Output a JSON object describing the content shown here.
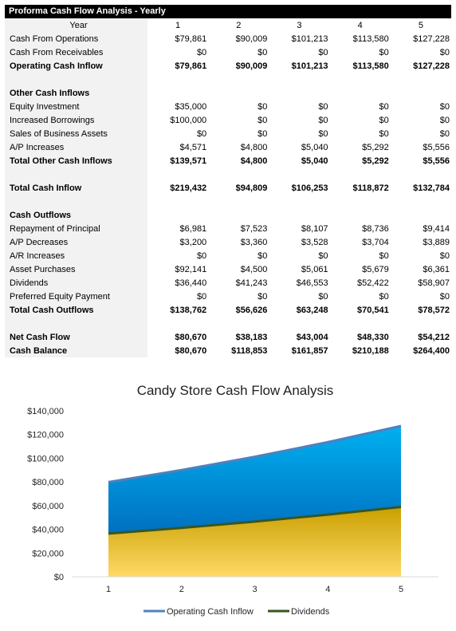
{
  "sheet": {
    "title": "Proforma Cash Flow Analysis - Yearly",
    "year_label": "Year",
    "years": [
      "1",
      "2",
      "3",
      "4",
      "5"
    ],
    "rows": [
      {
        "type": "row",
        "label": "Cash From Operations",
        "values": [
          "$79,861",
          "$90,009",
          "$101,213",
          "$113,580",
          "$127,228"
        ]
      },
      {
        "type": "row",
        "label": "Cash From Receivables",
        "values": [
          "$0",
          "$0",
          "$0",
          "$0",
          "$0"
        ]
      },
      {
        "type": "bold",
        "label": "Operating Cash Inflow",
        "values": [
          "$79,861",
          "$90,009",
          "$101,213",
          "$113,580",
          "$127,228"
        ]
      },
      {
        "type": "spacer"
      },
      {
        "type": "section",
        "label": "Other Cash Inflows"
      },
      {
        "type": "row",
        "label": "Equity Investment",
        "values": [
          "$35,000",
          "$0",
          "$0",
          "$0",
          "$0"
        ]
      },
      {
        "type": "row",
        "label": "Increased Borrowings",
        "values": [
          "$100,000",
          "$0",
          "$0",
          "$0",
          "$0"
        ]
      },
      {
        "type": "row",
        "label": "Sales of Business Assets",
        "values": [
          "$0",
          "$0",
          "$0",
          "$0",
          "$0"
        ]
      },
      {
        "type": "row",
        "label": "A/P Increases",
        "values": [
          "$4,571",
          "$4,800",
          "$5,040",
          "$5,292",
          "$5,556"
        ]
      },
      {
        "type": "bold",
        "label": "Total Other Cash Inflows",
        "values": [
          "$139,571",
          "$4,800",
          "$5,040",
          "$5,292",
          "$5,556"
        ]
      },
      {
        "type": "spacer"
      },
      {
        "type": "bold",
        "label": "Total Cash Inflow",
        "values": [
          "$219,432",
          "$94,809",
          "$106,253",
          "$118,872",
          "$132,784"
        ]
      },
      {
        "type": "spacer"
      },
      {
        "type": "section",
        "label": "Cash Outflows"
      },
      {
        "type": "row",
        "label": "Repayment of Principal",
        "values": [
          "$6,981",
          "$7,523",
          "$8,107",
          "$8,736",
          "$9,414"
        ]
      },
      {
        "type": "row",
        "label": "A/P Decreases",
        "values": [
          "$3,200",
          "$3,360",
          "$3,528",
          "$3,704",
          "$3,889"
        ]
      },
      {
        "type": "row",
        "label": "A/R Increases",
        "values": [
          "$0",
          "$0",
          "$0",
          "$0",
          "$0"
        ]
      },
      {
        "type": "row",
        "label": "Asset Purchases",
        "values": [
          "$92,141",
          "$4,500",
          "$5,061",
          "$5,679",
          "$6,361"
        ]
      },
      {
        "type": "row",
        "label": "Dividends",
        "values": [
          "$36,440",
          "$41,243",
          "$46,553",
          "$52,422",
          "$58,907"
        ]
      },
      {
        "type": "row",
        "label": "Preferred Equity Payment",
        "values": [
          "$0",
          "$0",
          "$0",
          "$0",
          "$0"
        ]
      },
      {
        "type": "bold",
        "label": "Total Cash Outflows",
        "values": [
          "$138,762",
          "$56,626",
          "$63,248",
          "$70,541",
          "$78,572"
        ]
      },
      {
        "type": "spacer"
      },
      {
        "type": "bold",
        "label": "Net Cash Flow",
        "values": [
          "$80,670",
          "$38,183",
          "$43,004",
          "$48,330",
          "$54,212"
        ]
      },
      {
        "type": "bold",
        "label": "Cash Balance",
        "values": [
          "$80,670",
          "$118,853",
          "$161,857",
          "$210,188",
          "$264,400"
        ]
      }
    ]
  },
  "chart_data": {
    "type": "area",
    "title": "Candy Store Cash Flow Analysis",
    "categories": [
      "1",
      "2",
      "3",
      "4",
      "5"
    ],
    "y_tick_labels": [
      "$0",
      "$20,000",
      "$40,000",
      "$60,000",
      "$80,000",
      "$100,000",
      "$120,000",
      "$140,000"
    ],
    "ylim": [
      0,
      140000
    ],
    "legend_position": "bottom",
    "series": [
      {
        "name": "Operating Cash Inflow",
        "values": [
          79861,
          90009,
          101213,
          113580,
          127228
        ],
        "line_color": "#4f81bd",
        "fill_top": "#00b0f0",
        "fill_bottom": "#0070c0"
      },
      {
        "name": "Dividends",
        "values": [
          36440,
          41243,
          46553,
          52422,
          58907
        ],
        "line_color": "#375623",
        "fill_top": "#c9a000",
        "fill_bottom": "#ffd966"
      }
    ]
  }
}
